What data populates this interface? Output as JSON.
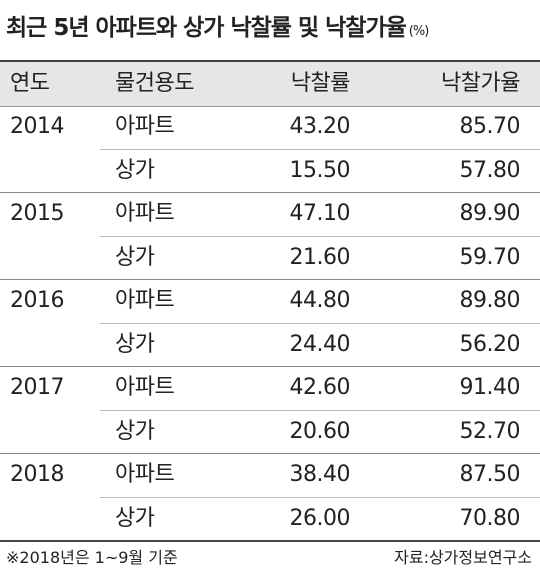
{
  "title": "최근 5년 아파트와 상가 낙찰률 및 낙찰가율",
  "unit": "(%)",
  "table": {
    "header": [
      "연도",
      "물건용도",
      "낙찰률",
      "낙찰가율"
    ],
    "groups": [
      {
        "year": "2014",
        "rows": [
          [
            "아파트",
            "43.20",
            "85.70"
          ],
          [
            "상가",
            "15.50",
            "57.80"
          ]
        ]
      },
      {
        "year": "2015",
        "rows": [
          [
            "아파트",
            "47.10",
            "89.90"
          ],
          [
            "상가",
            "21.60",
            "59.70"
          ]
        ]
      },
      {
        "year": "2016",
        "rows": [
          [
            "아파트",
            "44.80",
            "89.80"
          ],
          [
            "상가",
            "24.40",
            "56.20"
          ]
        ]
      },
      {
        "year": "2017",
        "rows": [
          [
            "아파트",
            "42.60",
            "91.40"
          ],
          [
            "상가",
            "20.60",
            "52.70"
          ]
        ]
      },
      {
        "year": "2018",
        "rows": [
          [
            "아파트",
            "38.40",
            "87.50"
          ],
          [
            "상가",
            "26.00",
            "70.80"
          ]
        ]
      }
    ]
  },
  "note": "※2018년은 1~9월 기준",
  "source": "자료:상가정보연구소"
}
